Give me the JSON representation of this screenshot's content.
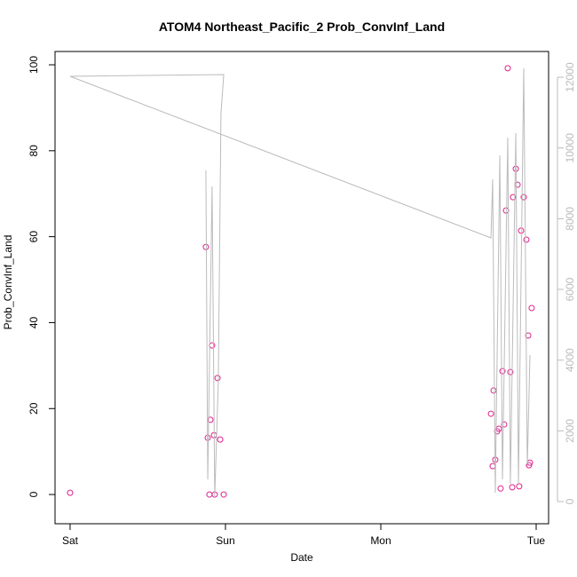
{
  "chart_data": {
    "type": "scatter",
    "title": "ATOM4 Northeast_Pacific_2 Prob_ConvInf_Land",
    "xlabel": "Date",
    "ylabel": "Prob_ConvInf_Land",
    "xlim": [
      -0.097,
      3.08
    ],
    "xticks": [
      {
        "value": 0,
        "label": "Sat"
      },
      {
        "value": 1,
        "label": "Sun"
      },
      {
        "value": 2,
        "label": "Mon"
      },
      {
        "value": 3,
        "label": "Tue"
      }
    ],
    "ylim": [
      -6.8,
      103.1
    ],
    "yticks": [
      0,
      20,
      40,
      60,
      80,
      100
    ],
    "y2lim": [
      -628,
      12729
    ],
    "y2ticks": [
      0,
      2000,
      4000,
      6000,
      8000,
      10000,
      12000
    ],
    "y2color": "#bbbbbb",
    "series": [
      {
        "type": "scatter",
        "color": "#e0208c",
        "x": [
          0,
          0.874,
          0.886,
          0.897,
          0.903,
          0.914,
          0.926,
          0.931,
          0.949,
          0.966,
          0.989,
          2.709,
          2.72,
          2.726,
          2.737,
          2.749,
          2.76,
          2.771,
          2.783,
          2.794,
          2.806,
          2.817,
          2.834,
          2.846,
          2.851,
          2.869,
          2.88,
          2.891,
          2.903,
          2.92,
          2.937,
          2.949,
          2.954,
          2.96,
          2.971
        ],
        "values": [
          0.4,
          57.6,
          13.2,
          0,
          17.4,
          34.7,
          13.8,
          0,
          27.1,
          12.8,
          0,
          18.8,
          6.6,
          24.2,
          8.1,
          14.7,
          15.3,
          1.4,
          28.7,
          16.3,
          66.1,
          99.2,
          28.5,
          1.7,
          69.2,
          75.8,
          72.1,
          1.9,
          61.4,
          69.2,
          59.3,
          37.0,
          6.8,
          7.4,
          43.4
        ]
      },
      {
        "type": "line",
        "axis": "y2",
        "color": "#bbbbbb",
        "x": [
          0.874,
          0.886,
          0.914,
          0.931,
          0.954,
          0.971,
          0.989,
          0,
          2.709,
          2.72,
          2.737,
          2.766,
          2.783,
          2.817,
          2.834,
          2.869,
          2.886,
          2.92,
          2.943,
          2.96
        ],
        "values": [
          9365,
          628,
          8913,
          126,
          3389,
          10972,
          12077,
          12026,
          7457,
          9114,
          251,
          9792,
          628,
          10294,
          502,
          10419,
          502,
          12252,
          1004,
          4143
        ]
      }
    ]
  }
}
